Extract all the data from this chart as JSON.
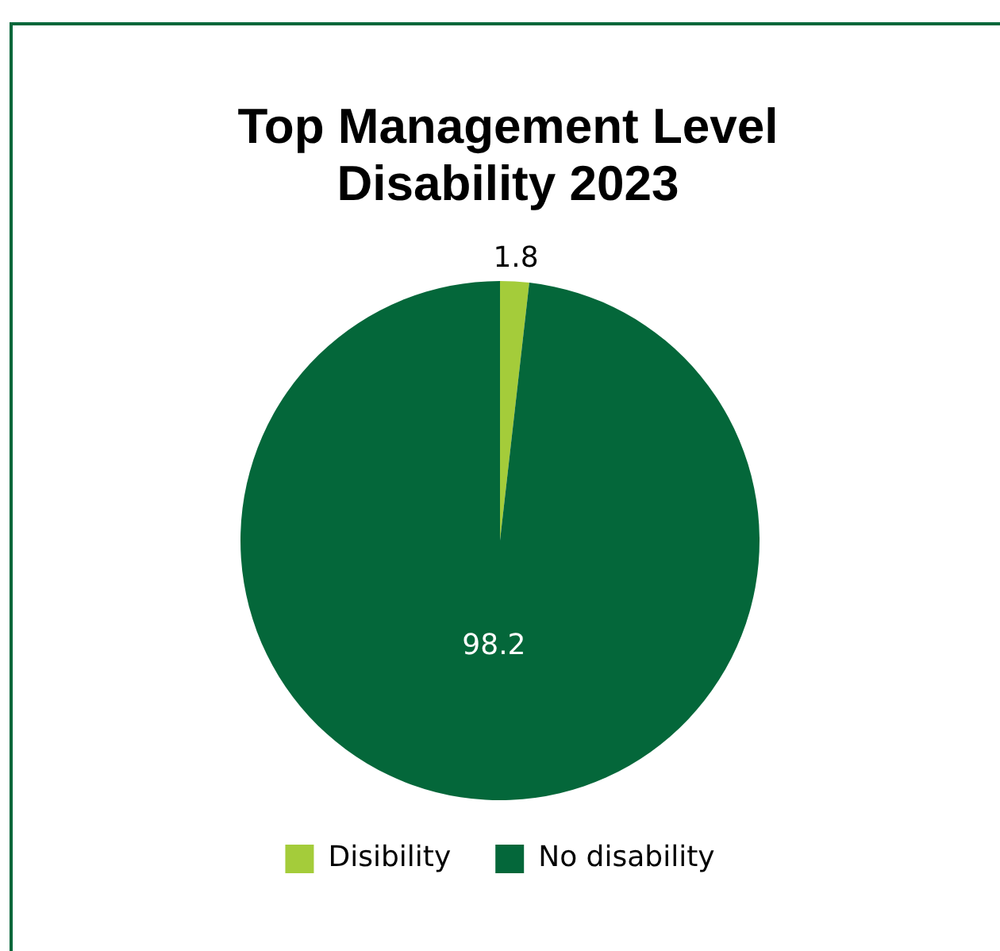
{
  "chart_data": {
    "type": "pie",
    "title": "Top Management Level Disability 2023",
    "categories": [
      "Disibility",
      "No disability"
    ],
    "values": [
      1.8,
      98.2
    ],
    "colors": [
      "#a4cc3a",
      "#04673a"
    ],
    "data_labels": true,
    "legend": "bottom"
  }
}
